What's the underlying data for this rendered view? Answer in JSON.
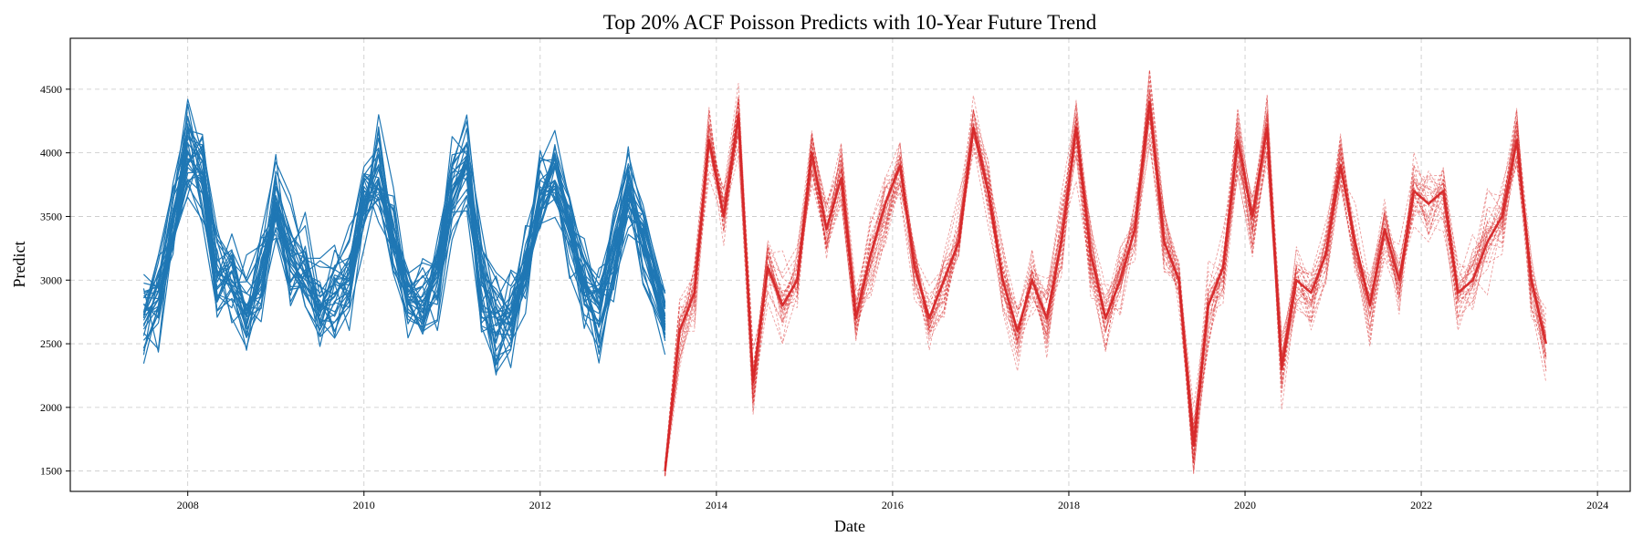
{
  "chart_data": {
    "type": "line",
    "title": "Top 20% ACF Poisson Predicts with 10-Year Future Trend",
    "xlabel": "Date",
    "ylabel": "Predict",
    "xlim": [
      "2006-09-01",
      "2024-05-15"
    ],
    "ylim": [
      1340,
      4900
    ],
    "grid": true,
    "x_ticks": [
      "2008",
      "2010",
      "2012",
      "2014",
      "2016",
      "2018",
      "2020",
      "2022",
      "2024"
    ],
    "y_ticks": [
      1500,
      2000,
      2500,
      3000,
      3500,
      4000,
      4500
    ],
    "colors": {
      "historical": "#1f77b4",
      "future": "#d62728"
    },
    "series": [
      {
        "style": "solid",
        "line_count": 30,
        "x": [
          "2007-07",
          "2007-09",
          "2007-11",
          "2008-01",
          "2008-03",
          "2008-05",
          "2008-07",
          "2008-09",
          "2008-11",
          "2009-01",
          "2009-03",
          "2009-05",
          "2009-07",
          "2009-09",
          "2009-11",
          "2010-01",
          "2010-03",
          "2010-05",
          "2010-07",
          "2010-09",
          "2010-11",
          "2011-01",
          "2011-03",
          "2011-05",
          "2011-07",
          "2011-09",
          "2011-11",
          "2012-01",
          "2012-03",
          "2012-05",
          "2012-07",
          "2012-09",
          "2012-11",
          "2013-01",
          "2013-03",
          "2013-06"
        ],
        "values": [
          2650,
          2850,
          3450,
          4000,
          3800,
          3050,
          3000,
          2800,
          3000,
          3600,
          3200,
          3050,
          2800,
          2900,
          3000,
          3600,
          3800,
          3300,
          2850,
          2800,
          3000,
          3700,
          3900,
          3000,
          2700,
          2750,
          3100,
          3600,
          3900,
          3400,
          3000,
          2800,
          3200,
          3700,
          3300,
          2650
        ]
      },
      {
        "style": "dashed",
        "line_count": 30,
        "x": [
          "2013-06",
          "2013-08",
          "2013-10",
          "2013-12",
          "2014-02",
          "2014-04",
          "2014-06",
          "2014-08",
          "2014-10",
          "2014-12",
          "2015-02",
          "2015-04",
          "2015-06",
          "2015-08",
          "2015-10",
          "2015-12",
          "2016-02",
          "2016-04",
          "2016-06",
          "2016-08",
          "2016-10",
          "2016-12",
          "2017-02",
          "2017-04",
          "2017-06",
          "2017-08",
          "2017-10",
          "2017-12",
          "2018-02",
          "2018-04",
          "2018-06",
          "2018-08",
          "2018-10",
          "2018-12",
          "2019-02",
          "2019-04",
          "2019-06",
          "2019-08",
          "2019-10",
          "2019-12",
          "2020-02",
          "2020-04",
          "2020-06",
          "2020-08",
          "2020-10",
          "2020-12",
          "2021-02",
          "2021-04",
          "2021-06",
          "2021-08",
          "2021-10",
          "2021-12",
          "2022-02",
          "2022-04",
          "2022-06",
          "2022-08",
          "2022-10",
          "2022-12",
          "2023-02",
          "2023-04",
          "2023-06"
        ],
        "values": [
          1500,
          2600,
          2900,
          4100,
          3500,
          4300,
          2200,
          3100,
          2800,
          3000,
          4000,
          3400,
          3800,
          2700,
          3200,
          3600,
          3900,
          3100,
          2700,
          3000,
          3300,
          4200,
          3700,
          3000,
          2600,
          3000,
          2700,
          3300,
          4200,
          3200,
          2700,
          3000,
          3400,
          4400,
          3300,
          3000,
          1700,
          2800,
          3100,
          4100,
          3500,
          4200,
          2300,
          3000,
          2900,
          3200,
          3900,
          3300,
          2800,
          3400,
          3000,
          3700,
          3600,
          3700,
          2900,
          3000,
          3300,
          3500,
          4100,
          3000,
          2500
        ]
      }
    ]
  }
}
